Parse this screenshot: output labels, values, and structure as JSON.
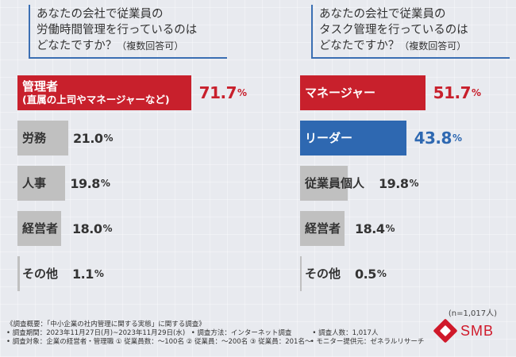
{
  "chart_data": [
    {
      "type": "bar",
      "title_lines": [
        "あなたの会社で従業員の",
        "労働時間管理を行っているのは",
        "どなたですか？"
      ],
      "title_sub": "（複数回答可）",
      "unit": "%",
      "categories": [
        {
          "main": "管理者",
          "sub": "(直属の上司やマネージャーなど)"
        },
        {
          "main": "労務"
        },
        {
          "main": "人事"
        },
        {
          "main": "経営者"
        },
        {
          "main": "その他"
        }
      ],
      "values": [
        71.7,
        21.0,
        19.8,
        18.0,
        1.1
      ],
      "value_labels": [
        "71.7",
        "21.0",
        "19.8",
        "18.0",
        "1.1"
      ],
      "highlight": [
        true,
        false,
        false,
        false,
        false
      ],
      "colors": [
        "#c8202c",
        "#c0c0c0",
        "#c0c0c0",
        "#c0c0c0",
        "#c0c0c0"
      ]
    },
    {
      "type": "bar",
      "title_lines": [
        "あなたの会社で従業員の",
        "タスク管理を行っているのは",
        "どなたですか？"
      ],
      "title_sub": "（複数回答可）",
      "unit": "%",
      "categories": [
        {
          "main": "マネージャー"
        },
        {
          "main": "リーダー"
        },
        {
          "main": "従業員個人"
        },
        {
          "main": "経営者"
        },
        {
          "main": "その他"
        }
      ],
      "values": [
        51.7,
        43.8,
        19.8,
        18.4,
        0.5
      ],
      "value_labels": [
        "51.7",
        "43.8",
        "19.8",
        "18.4",
        "0.5"
      ],
      "highlight": [
        true,
        true,
        false,
        false,
        false
      ],
      "colors": [
        "#c8202c",
        "#2e68b1",
        "#c0c0c0",
        "#c0c0c0",
        "#c0c0c0"
      ]
    }
  ],
  "note": "(n=1,017人)",
  "footer": {
    "line1": "《調査概要：「中小企業の社内管理に関する実態」に関する調査》",
    "line2": [
      "• 調査期間：2023年11月27日(月)~2023年11月29日(水)",
      "• 調査方法：インターネット調査",
      "• 調査人数：1,017人"
    ],
    "line3": [
      "• 調査対象：企業の経営者・管理職 ① 従業員数：～100名 ② 従業員：～200名 ③ 従業員：201名～",
      "• モニター提供元：ゼネラルリサーチ"
    ]
  },
  "logo": {
    "text": "SMB",
    "color": "#d0192a"
  }
}
